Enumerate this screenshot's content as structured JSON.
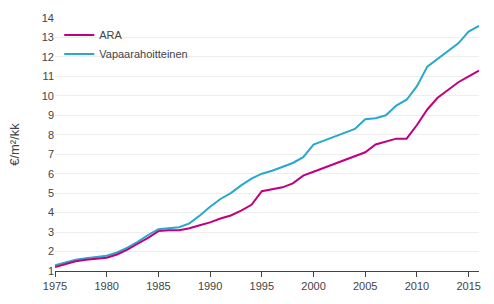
{
  "chart_data": {
    "type": "line",
    "ylabel": "€/m²/kk",
    "x": [
      1975,
      1976,
      1977,
      1978,
      1979,
      1980,
      1981,
      1982,
      1983,
      1984,
      1985,
      1986,
      1987,
      1988,
      1989,
      1990,
      1991,
      1992,
      1993,
      1994,
      1995,
      1996,
      1997,
      1998,
      1999,
      2000,
      2001,
      2002,
      2003,
      2004,
      2005,
      2006,
      2007,
      2008,
      2009,
      2010,
      2011,
      2012,
      2013,
      2014,
      2015,
      2016
    ],
    "series": [
      {
        "name": "ARA",
        "color": "#C0007F",
        "values": [
          1.2,
          1.35,
          1.5,
          1.58,
          1.62,
          1.68,
          1.85,
          2.1,
          2.4,
          2.7,
          3.05,
          3.1,
          3.1,
          3.2,
          3.35,
          3.5,
          3.7,
          3.85,
          4.1,
          4.4,
          5.1,
          5.2,
          5.3,
          5.5,
          5.9,
          6.1,
          6.3,
          6.5,
          6.7,
          6.9,
          7.1,
          7.5,
          7.65,
          7.8,
          7.8,
          8.5,
          9.3,
          9.9,
          10.3,
          10.7,
          11.0,
          11.3
        ]
      },
      {
        "name": "Vapaarahoitteinen",
        "color": "#29A8CC",
        "values": [
          1.3,
          1.45,
          1.58,
          1.65,
          1.7,
          1.78,
          1.95,
          2.2,
          2.5,
          2.85,
          3.15,
          3.2,
          3.25,
          3.45,
          3.85,
          4.3,
          4.7,
          5.0,
          5.4,
          5.75,
          6.0,
          6.15,
          6.35,
          6.55,
          6.85,
          7.5,
          7.7,
          7.9,
          8.1,
          8.3,
          8.8,
          8.85,
          9.0,
          9.5,
          9.8,
          10.5,
          11.5,
          11.9,
          12.3,
          12.7,
          13.3,
          13.6
        ]
      }
    ],
    "xlim": [
      1975,
      2016
    ],
    "xticks": [
      1975,
      1980,
      1985,
      1990,
      1995,
      2000,
      2005,
      2010,
      2015
    ],
    "ylim": [
      1,
      14
    ],
    "yticks": [
      1,
      2,
      3,
      4,
      5,
      6,
      7,
      8,
      9,
      10,
      11,
      12,
      13,
      14
    ],
    "grid": "y",
    "legend": "upper left"
  }
}
